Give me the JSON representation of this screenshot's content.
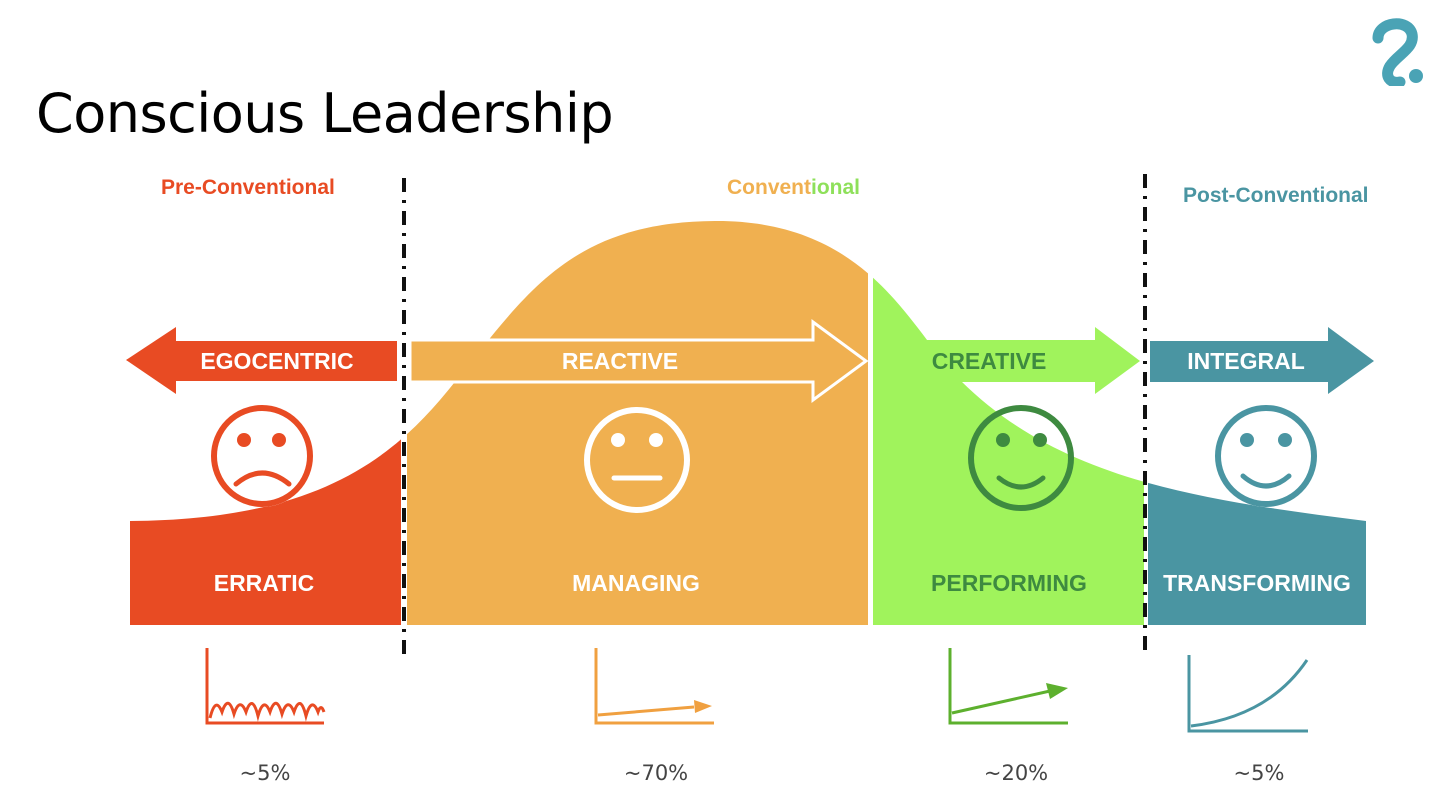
{
  "title": "Conscious Leadership",
  "categories": {
    "pre": "Pre-Conventional",
    "conventional_part1": "Convent",
    "conventional_part2": "ional",
    "post": "Post-Conventional"
  },
  "stages": [
    {
      "arrow": "EGOCENTRIC",
      "base": "ERRATIC",
      "mood": "sad",
      "percent": "~5%",
      "color": "#E84B23"
    },
    {
      "arrow": "REACTIVE",
      "base": "MANAGING",
      "mood": "neutral",
      "percent": "~70%",
      "color": "#F0B050"
    },
    {
      "arrow": "CREATIVE",
      "base": "PERFORMING",
      "mood": "smile",
      "percent": "~20%",
      "color": "#A0F35C"
    },
    {
      "arrow": "INTEGRAL",
      "base": "TRANSFORMING",
      "mood": "smile",
      "percent": "~5%",
      "color": "#4A95A2"
    }
  ],
  "colors": {
    "red": "#E84B23",
    "orange": "#F0B050",
    "green": "#A0F35C",
    "dark_green": "#3E8A40",
    "teal": "#4A95A2",
    "line_green": "#5DB02E"
  },
  "icons": [
    "logo-mark-icon",
    "sad-face-icon",
    "neutral-face-icon",
    "happy-face-icon",
    "erratic-graph-icon",
    "flat-growth-graph-icon",
    "linear-growth-graph-icon",
    "exponential-graph-icon"
  ]
}
